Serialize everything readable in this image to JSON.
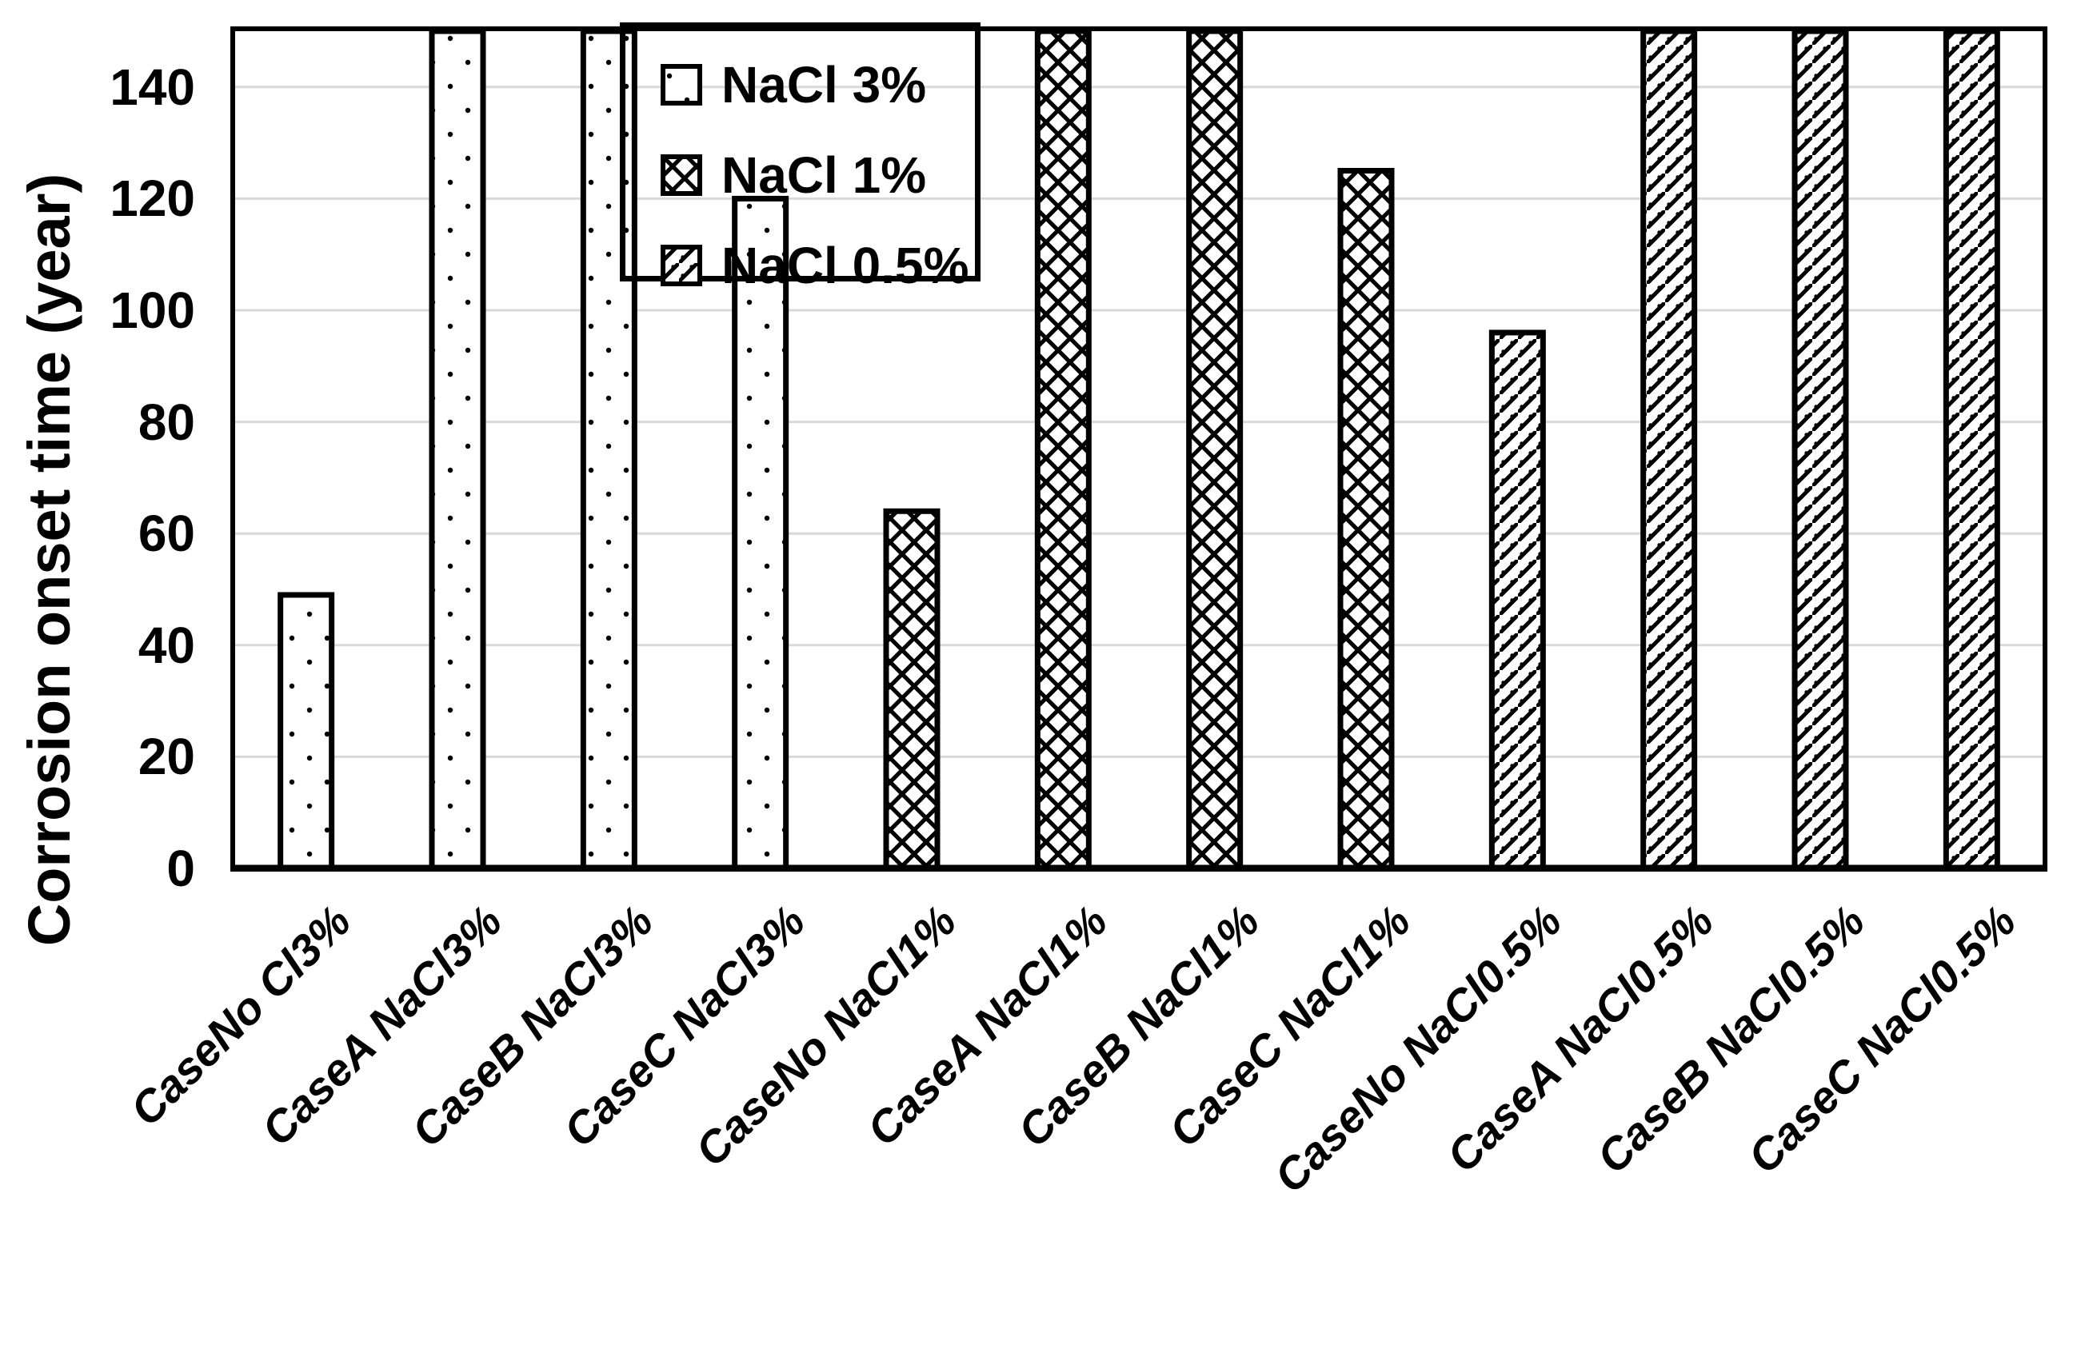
{
  "colors": {
    "ink": "#000000",
    "gridline": "#d9d9d9",
    "background": "#ffffff"
  },
  "legend": {
    "entries": [
      {
        "label": "NaCl 3%",
        "pattern": "dots"
      },
      {
        "label": "NaCl 1%",
        "pattern": "crosshatch"
      },
      {
        "label": "NaCl 0.5%",
        "pattern": "diagonal"
      }
    ]
  },
  "chart_data": {
    "type": "bar",
    "title": "",
    "xlabel": "",
    "ylabel": "Corrosion onset time (year)",
    "ylim": [
      0,
      150
    ],
    "yticks": [
      0,
      20,
      40,
      60,
      80,
      100,
      120,
      140
    ],
    "grid": true,
    "legend_position": "inside-top-left",
    "categories": [
      "CaseNo Cl3%",
      "CaseA NaCl3%",
      "CaseB NaCl3%",
      "CaseC NaCl3%",
      "CaseNo NaCl1%",
      "CaseA NaCl1%",
      "CaseB NaCl1%",
      "CaseC NaCl1%",
      "CaseNo NaCl0.5%",
      "CaseA NaCl0.5%",
      "CaseB NaCl0.5%",
      "CaseC NaCl0.5%"
    ],
    "series": [
      {
        "name": "NaCl 3%",
        "pattern": "dots",
        "values": [
          49,
          150,
          150,
          120,
          null,
          null,
          null,
          null,
          null,
          null,
          null,
          null
        ]
      },
      {
        "name": "NaCl 1%",
        "pattern": "crosshatch",
        "values": [
          null,
          null,
          null,
          null,
          64,
          150,
          150,
          125,
          null,
          null,
          null,
          null
        ]
      },
      {
        "name": "NaCl 0.5%",
        "pattern": "diagonal",
        "values": [
          null,
          null,
          null,
          null,
          null,
          null,
          null,
          null,
          96,
          150,
          150,
          150
        ]
      }
    ]
  }
}
